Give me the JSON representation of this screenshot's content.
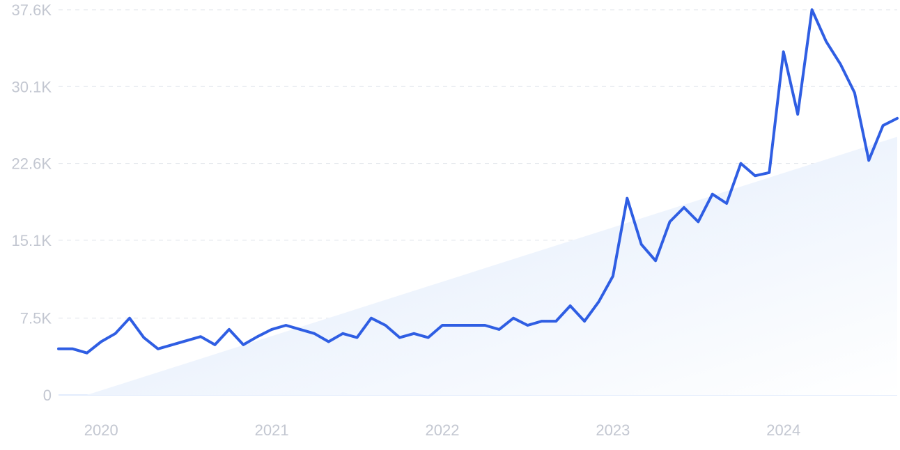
{
  "chart_data": {
    "type": "line",
    "title": "",
    "xlabel": "",
    "ylabel": "",
    "y_ticks": [
      {
        "value": 0,
        "label": "0"
      },
      {
        "value": 7500,
        "label": "7.5K"
      },
      {
        "value": 15100,
        "label": "15.1K"
      },
      {
        "value": 22600,
        "label": "22.6K"
      },
      {
        "value": 30100,
        "label": "30.1K"
      },
      {
        "value": 37600,
        "label": "37.6K"
      }
    ],
    "x_ticks": [
      {
        "value": "2020-01",
        "label": "2020"
      },
      {
        "value": "2021-01",
        "label": "2021"
      },
      {
        "value": "2022-01",
        "label": "2022"
      },
      {
        "value": "2023-01",
        "label": "2023"
      },
      {
        "value": "2024-01",
        "label": "2024"
      }
    ],
    "xlim": [
      "2019-10",
      "2024-09"
    ],
    "ylim": [
      0,
      37600
    ],
    "grid": true,
    "colors": {
      "line": "#2f5ee3",
      "trend_fill": "#e3eefc",
      "grid": "#dfe3ea",
      "tick_text": "#c3c7d1"
    },
    "series": [
      {
        "x": [
          "2019-10",
          "2019-11",
          "2019-12",
          "2020-01",
          "2020-02",
          "2020-03",
          "2020-04",
          "2020-05",
          "2020-06",
          "2020-07",
          "2020-08",
          "2020-09",
          "2020-10",
          "2020-11",
          "2020-12",
          "2021-01",
          "2021-02",
          "2021-03",
          "2021-04",
          "2021-05",
          "2021-06",
          "2021-07",
          "2021-08",
          "2021-09",
          "2021-10",
          "2021-11",
          "2021-12",
          "2022-01",
          "2022-02",
          "2022-03",
          "2022-04",
          "2022-05",
          "2022-06",
          "2022-07",
          "2022-08",
          "2022-09",
          "2022-10",
          "2022-11",
          "2022-12",
          "2023-01",
          "2023-02",
          "2023-03",
          "2023-04",
          "2023-05",
          "2023-06",
          "2023-07",
          "2023-08",
          "2023-09",
          "2023-10",
          "2023-11",
          "2023-12",
          "2024-01",
          "2024-02",
          "2024-03",
          "2024-04",
          "2024-05",
          "2024-06",
          "2024-07",
          "2024-08",
          "2024-09"
        ],
        "values": [
          4500,
          4500,
          4100,
          5200,
          6000,
          7500,
          5600,
          4500,
          4900,
          5300,
          5700,
          4900,
          6400,
          4900,
          5700,
          6400,
          6800,
          6400,
          6000,
          5200,
          6000,
          5600,
          7500,
          6800,
          5600,
          6000,
          5600,
          6800,
          6800,
          6800,
          6800,
          6400,
          7500,
          6800,
          7200,
          7200,
          8700,
          7200,
          9100,
          11600,
          19200,
          14700,
          13100,
          16900,
          18300,
          16900,
          19600,
          18700,
          22600,
          21400,
          21700,
          33500,
          27400,
          37600,
          34500,
          32300,
          29500,
          22900,
          26300,
          27000
        ]
      }
    ],
    "trend": {
      "type": "area",
      "x": [
        "2019-12",
        "2024-09"
      ],
      "values": [
        0,
        25200
      ]
    }
  }
}
